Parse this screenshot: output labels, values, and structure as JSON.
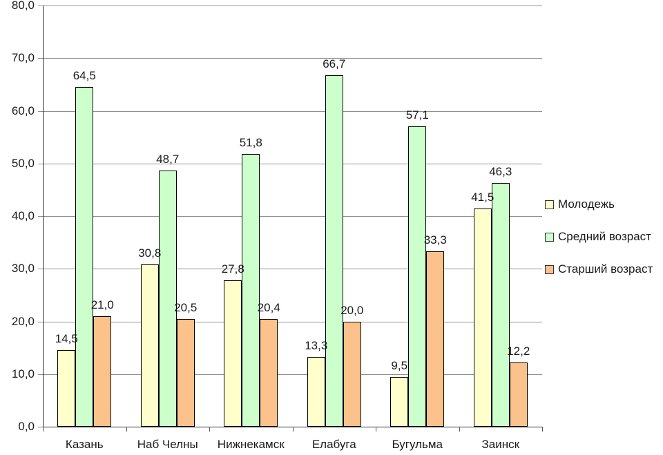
{
  "chart_data": {
    "type": "bar",
    "title": "",
    "xlabel": "",
    "ylabel": "",
    "categories": [
      "Казань",
      "Наб Челны",
      "Нижнекамск",
      "Елабуга",
      "Бугульма",
      "Заинск"
    ],
    "series": [
      {
        "name": "Молодежь",
        "color": "#FFFFCC",
        "values": [
          14.5,
          30.8,
          27.8,
          13.3,
          9.5,
          41.5
        ]
      },
      {
        "name": "Средний возраст",
        "color": "#CCFFCC",
        "values": [
          64.5,
          48.7,
          51.8,
          66.7,
          57.1,
          46.3
        ]
      },
      {
        "name": "Старший возраст",
        "color": "#FBC28C",
        "values": [
          21.0,
          20.5,
          20.4,
          20.0,
          33.3,
          12.2
        ]
      }
    ],
    "data_labels": [
      [
        "14,5",
        "30,8",
        "27,8",
        "13,3",
        "9,5",
        "41,5"
      ],
      [
        "64,5",
        "48,7",
        "51,8",
        "66,7",
        "57,1",
        "46,3"
      ],
      [
        "21,0",
        "20,5",
        "20,4",
        "20,0",
        "33,3",
        "12,2"
      ]
    ],
    "ylim": [
      0,
      80
    ],
    "ytick_step": 10,
    "ytick_labels": [
      "0,0",
      "10,0",
      "20,0",
      "30,0",
      "40,0",
      "50,0",
      "60,0",
      "70,0",
      "80,0"
    ],
    "grid": true,
    "legend_position": "right",
    "colors": {
      "gridline": "#909090",
      "axis": "#2b2b2b",
      "bar_border": "#000000",
      "text": "#1a1a1a",
      "background": "#ffffff"
    }
  }
}
